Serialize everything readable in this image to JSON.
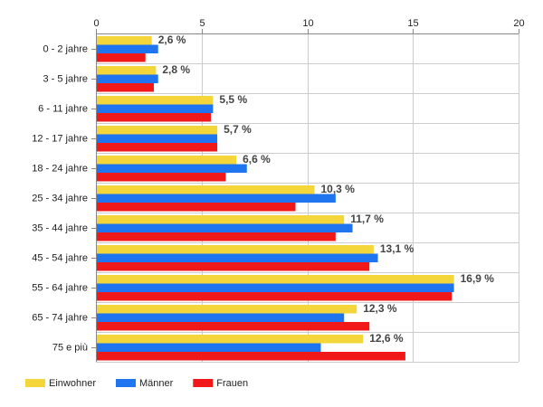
{
  "chart_data": {
    "type": "bar",
    "orientation": "horizontal",
    "categories": [
      "0 - 2 jahre",
      "3 - 5 jahre",
      "6 - 11 jahre",
      "12 - 17 jahre",
      "18 - 24 jahre",
      "25 - 34 jahre",
      "35 - 44 jahre",
      "45 - 54 jahre",
      "55 - 64 jahre",
      "65 - 74 jahre",
      "75 e più"
    ],
    "series": [
      {
        "name": "Einwohner",
        "color": "#f5d63a",
        "values": [
          2.6,
          2.8,
          5.5,
          5.7,
          6.6,
          10.3,
          11.7,
          13.1,
          16.9,
          12.3,
          12.6
        ]
      },
      {
        "name": "Männer",
        "color": "#1f74f0",
        "values": [
          2.9,
          2.9,
          5.5,
          5.7,
          7.1,
          11.3,
          12.1,
          13.3,
          16.9,
          11.7,
          10.6
        ]
      },
      {
        "name": "Frauen",
        "color": "#f01818",
        "values": [
          2.3,
          2.7,
          5.4,
          5.7,
          6.1,
          9.4,
          11.3,
          12.9,
          16.8,
          12.9,
          14.6
        ]
      }
    ],
    "data_labels": [
      "2,6 %",
      "2,8 %",
      "5,5 %",
      "5,7 %",
      "6,6 %",
      "10,3 %",
      "11,7 %",
      "13,1 %",
      "16,9 %",
      "12,3 %",
      "12,6 %"
    ],
    "xlim": [
      0,
      20
    ],
    "xticks": [
      0,
      5,
      10,
      15,
      20
    ],
    "xtick_labels": [
      "0",
      "5",
      "10",
      "15",
      "20"
    ],
    "x_axis_position": "top",
    "grid": true,
    "legend_position": "bottom-left",
    "title": "",
    "xlabel": "",
    "ylabel": ""
  }
}
